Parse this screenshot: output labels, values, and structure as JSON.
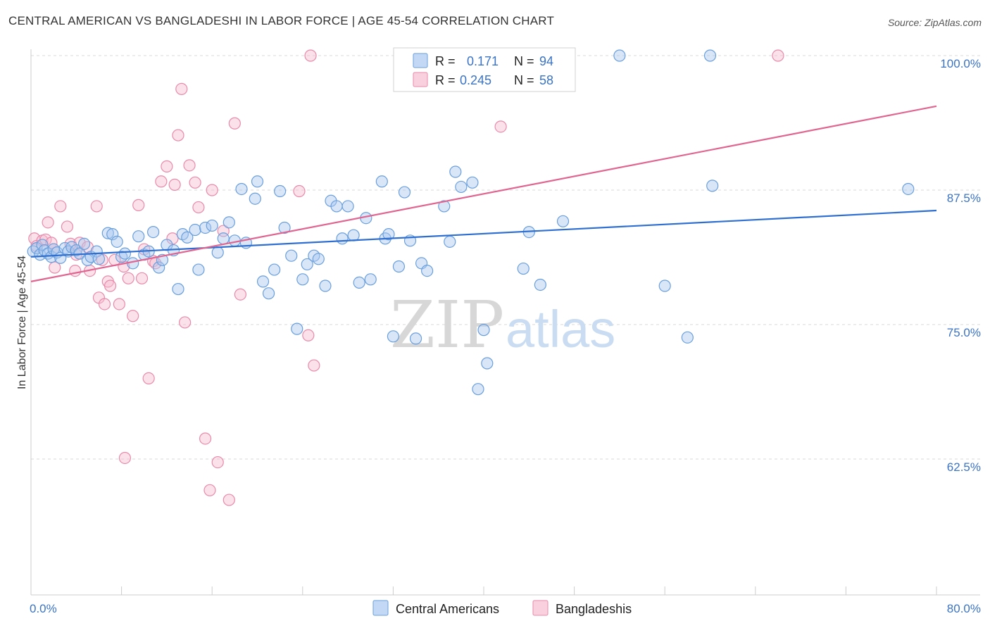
{
  "title": "CENTRAL AMERICAN VS BANGLADESHI IN LABOR FORCE | AGE 45-54 CORRELATION CHART",
  "source": "Source: ZipAtlas.com",
  "watermark": {
    "zip": "ZIP",
    "atlas": "atlas"
  },
  "colors": {
    "blue_fill": "#a9c8ef",
    "blue_stroke": "#6a9fdc",
    "blue_line": "#2f6fd0",
    "pink_fill": "#f7bcd0",
    "pink_stroke": "#e88aab",
    "pink_line": "#e06590",
    "tick_text": "#3b73c5",
    "grid": "#d8d8d8"
  },
  "legend": {
    "rows": [
      {
        "r_label": "R =",
        "r_value": "0.171",
        "n_label": "N =",
        "n_value": "94",
        "series": "blue"
      },
      {
        "r_label": "R =",
        "r_value": "0.245",
        "n_label": "N =",
        "n_value": "58",
        "series": "pink"
      }
    ]
  },
  "bottom_legend": [
    "Central Americans",
    "Bangladeshis"
  ],
  "chart_data": {
    "type": "scatter",
    "title": "CENTRAL AMERICAN VS BANGLADESHI IN LABOR FORCE | AGE 45-54 CORRELATION CHART",
    "xlabel": "",
    "ylabel": "In Labor Force | Age 45-54",
    "xlim": [
      0,
      80
    ],
    "ylim": [
      50,
      103
    ],
    "x_tick_labels": [
      "0.0%",
      "80.0%"
    ],
    "y_ticks": [
      62.5,
      75.0,
      87.5,
      100.0
    ],
    "y_tick_labels": [
      "62.5%",
      "75.0%",
      "87.5%",
      "100.0%"
    ],
    "grid": "horizontal dashed",
    "legend_position": "top-center",
    "series": [
      {
        "name": "Central Americans",
        "color": "blue",
        "R": 0.171,
        "N": 94,
        "trend": {
          "x": [
            0,
            80
          ],
          "y": [
            81.3,
            85.6
          ]
        },
        "points": [
          [
            0.2,
            81.8
          ],
          [
            0.5,
            82.1
          ],
          [
            0.8,
            81.5
          ],
          [
            1.0,
            82.4
          ],
          [
            1.2,
            81.9
          ],
          [
            1.5,
            81.6
          ],
          [
            1.8,
            81.3
          ],
          [
            2.0,
            82.0
          ],
          [
            2.3,
            81.7
          ],
          [
            2.6,
            81.2
          ],
          [
            3.0,
            82.1
          ],
          [
            3.3,
            81.8
          ],
          [
            3.6,
            82.2
          ],
          [
            4.0,
            81.9
          ],
          [
            4.3,
            81.6
          ],
          [
            4.7,
            82.5
          ],
          [
            5.0,
            81.0
          ],
          [
            5.3,
            81.3
          ],
          [
            5.8,
            81.8
          ],
          [
            6.0,
            81.1
          ],
          [
            6.8,
            83.5
          ],
          [
            7.2,
            83.4
          ],
          [
            7.6,
            82.7
          ],
          [
            8.0,
            81.3
          ],
          [
            8.3,
            81.6
          ],
          [
            9.0,
            80.7
          ],
          [
            9.5,
            83.2
          ],
          [
            10.0,
            81.5
          ],
          [
            10.4,
            81.8
          ],
          [
            10.8,
            83.6
          ],
          [
            11.3,
            80.3
          ],
          [
            11.6,
            81.0
          ],
          [
            12.0,
            82.4
          ],
          [
            12.6,
            81.9
          ],
          [
            13.0,
            78.3
          ],
          [
            13.4,
            83.4
          ],
          [
            13.8,
            83.1
          ],
          [
            14.5,
            83.8
          ],
          [
            14.8,
            80.1
          ],
          [
            15.4,
            84.0
          ],
          [
            16.0,
            84.2
          ],
          [
            16.5,
            81.7
          ],
          [
            17.0,
            83.0
          ],
          [
            17.5,
            84.5
          ],
          [
            18.0,
            82.8
          ],
          [
            18.6,
            87.6
          ],
          [
            19.0,
            82.6
          ],
          [
            19.8,
            86.7
          ],
          [
            20.0,
            88.3
          ],
          [
            20.5,
            79.0
          ],
          [
            21.0,
            77.9
          ],
          [
            21.5,
            80.1
          ],
          [
            22.0,
            87.4
          ],
          [
            22.4,
            84.0
          ],
          [
            23.0,
            81.4
          ],
          [
            23.5,
            74.6
          ],
          [
            24.0,
            79.2
          ],
          [
            24.4,
            80.6
          ],
          [
            25.0,
            81.4
          ],
          [
            25.4,
            81.1
          ],
          [
            26.0,
            78.6
          ],
          [
            26.5,
            86.5
          ],
          [
            27.0,
            86.0
          ],
          [
            27.5,
            83.0
          ],
          [
            28.0,
            86.0
          ],
          [
            28.5,
            83.3
          ],
          [
            29.0,
            78.9
          ],
          [
            29.6,
            84.9
          ],
          [
            30.0,
            79.2
          ],
          [
            31.0,
            88.3
          ],
          [
            31.3,
            83.0
          ],
          [
            31.6,
            83.4
          ],
          [
            32.0,
            73.9
          ],
          [
            32.5,
            80.4
          ],
          [
            33.0,
            87.3
          ],
          [
            33.5,
            82.8
          ],
          [
            34.0,
            73.7
          ],
          [
            34.5,
            80.7
          ],
          [
            35.0,
            80.0
          ],
          [
            36.5,
            86.0
          ],
          [
            37.0,
            82.7
          ],
          [
            37.5,
            89.2
          ],
          [
            38.0,
            87.8
          ],
          [
            39.0,
            88.2
          ],
          [
            40.0,
            74.5
          ],
          [
            40.3,
            71.4
          ],
          [
            43.5,
            80.2
          ],
          [
            44.0,
            83.6
          ],
          [
            45.0,
            78.7
          ],
          [
            47.0,
            84.6
          ],
          [
            52.0,
            100.0
          ],
          [
            56.0,
            78.6
          ],
          [
            58.0,
            73.8
          ],
          [
            60.0,
            100.0
          ],
          [
            60.2,
            87.9
          ],
          [
            77.5,
            87.6
          ],
          [
            43.0,
            100.0
          ],
          [
            39.5,
            69.0
          ]
        ]
      },
      {
        "name": "Bangladeshis",
        "color": "pink",
        "R": 0.245,
        "N": 58,
        "trend": {
          "x": [
            0,
            80
          ],
          "y": [
            79.0,
            95.3
          ]
        },
        "points": [
          [
            0.3,
            83.0
          ],
          [
            0.5,
            82.3
          ],
          [
            1.0,
            82.8
          ],
          [
            1.3,
            82.9
          ],
          [
            1.5,
            84.5
          ],
          [
            1.8,
            82.6
          ],
          [
            2.1,
            80.3
          ],
          [
            2.6,
            86.0
          ],
          [
            3.2,
            84.1
          ],
          [
            3.5,
            82.5
          ],
          [
            3.9,
            80.0
          ],
          [
            4.3,
            82.6
          ],
          [
            5.0,
            82.2
          ],
          [
            5.2,
            80.0
          ],
          [
            5.8,
            86.0
          ],
          [
            6.0,
            77.5
          ],
          [
            6.5,
            76.9
          ],
          [
            6.8,
            79.0
          ],
          [
            7.0,
            78.6
          ],
          [
            7.4,
            81.0
          ],
          [
            7.8,
            76.9
          ],
          [
            8.2,
            80.4
          ],
          [
            8.6,
            79.3
          ],
          [
            9.0,
            75.8
          ],
          [
            9.5,
            86.1
          ],
          [
            9.8,
            79.3
          ],
          [
            10.0,
            82.0
          ],
          [
            10.4,
            70.0
          ],
          [
            10.8,
            80.9
          ],
          [
            11.5,
            88.3
          ],
          [
            12.0,
            89.7
          ],
          [
            12.7,
            88.0
          ],
          [
            13.0,
            92.6
          ],
          [
            13.3,
            96.9
          ],
          [
            13.6,
            75.2
          ],
          [
            14.0,
            89.8
          ],
          [
            14.5,
            88.2
          ],
          [
            14.8,
            85.9
          ],
          [
            15.4,
            64.4
          ],
          [
            15.8,
            59.6
          ],
          [
            16.0,
            87.5
          ],
          [
            16.5,
            62.2
          ],
          [
            17.0,
            83.7
          ],
          [
            17.5,
            58.7
          ],
          [
            18.0,
            93.7
          ],
          [
            18.5,
            77.8
          ],
          [
            8.3,
            62.6
          ],
          [
            23.7,
            87.4
          ],
          [
            24.5,
            74.0
          ],
          [
            25.0,
            71.2
          ],
          [
            24.7,
            100.0
          ],
          [
            41.5,
            93.4
          ],
          [
            66.0,
            100.0
          ],
          [
            2.0,
            82.0
          ],
          [
            4.0,
            81.5
          ],
          [
            6.3,
            81.0
          ],
          [
            11.0,
            80.7
          ],
          [
            12.5,
            83.0
          ]
        ]
      }
    ]
  }
}
